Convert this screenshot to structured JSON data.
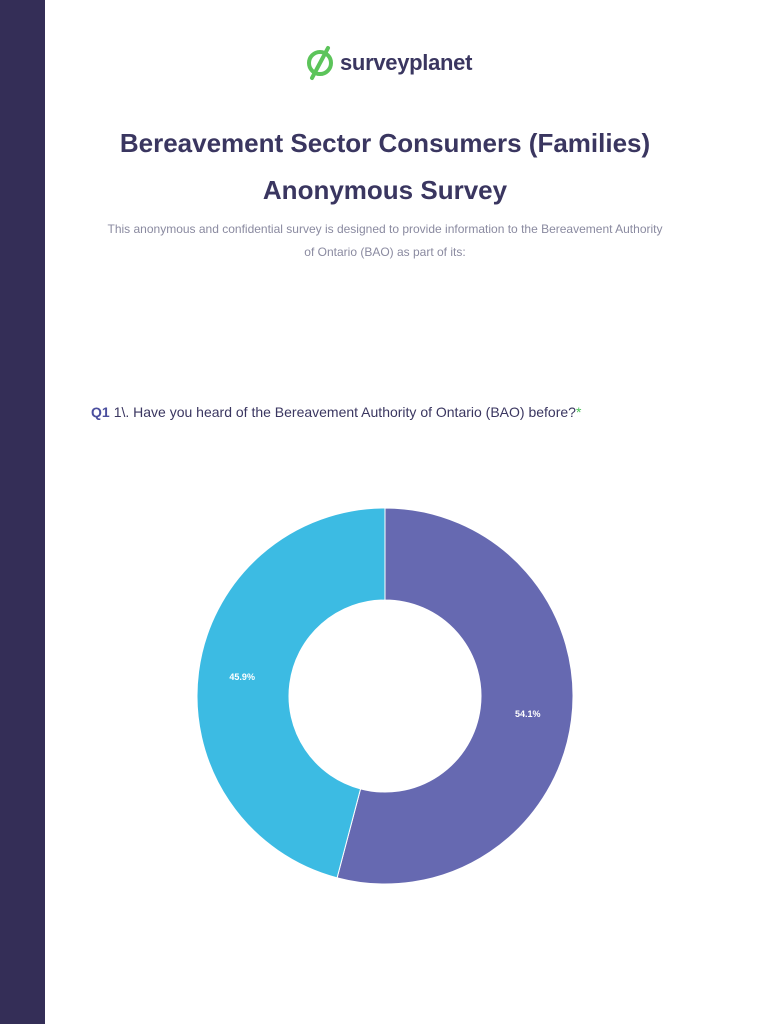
{
  "brand": {
    "name": "surveyplanet",
    "accent_color": "#5cc45a",
    "text_color": "#3a3660",
    "sidebar_color": "#342e57"
  },
  "survey": {
    "title_line1": "Bereavement Sector Consumers (Families)",
    "title_line2": "Anonymous Survey",
    "intro_line1": "This anonymous and confidential survey is designed to provide information to the Bereavement Authority",
    "intro_line2": "of Ontario (BAO) as part of its:"
  },
  "question": {
    "number": "Q1",
    "text": "1\\. Have you heard of the Bereavement Authority of Ontario (BAO) before?",
    "required_mark": "*"
  },
  "chart_data": {
    "type": "pie",
    "title": "1\\. Have you heard of the Bereavement Authority of Ontario (BAO) before?",
    "style": "donut",
    "slices": [
      {
        "label": "54.1%",
        "value": 54.1,
        "color": "#6669b1"
      },
      {
        "label": "45.9%",
        "value": 45.9,
        "color": "#3cbbe3"
      }
    ]
  }
}
